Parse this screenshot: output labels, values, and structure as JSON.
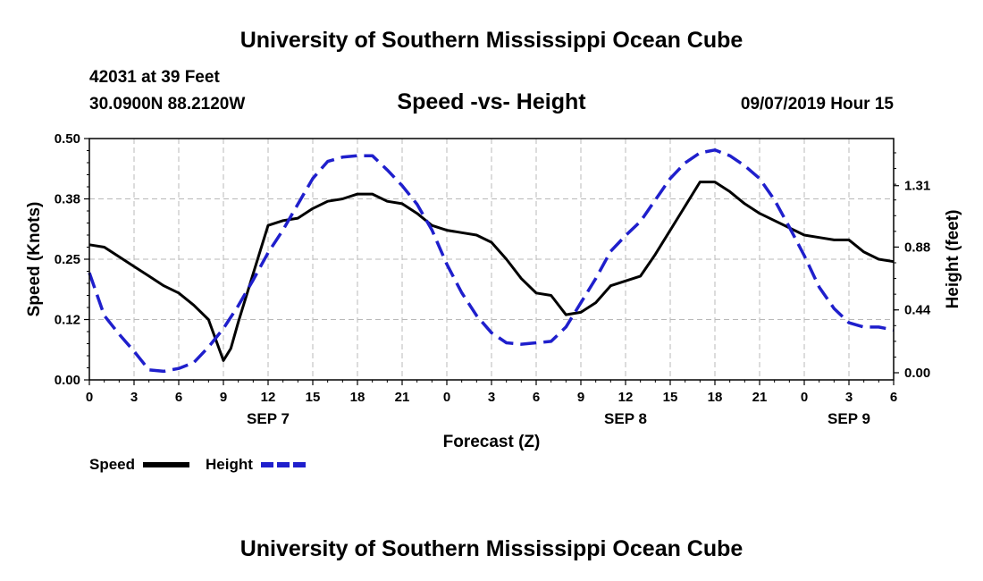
{
  "header": {
    "title": "University of Southern Mississippi Ocean Cube",
    "station": "42031 at 39 Feet",
    "coordinates": "30.0900N 88.2120W",
    "subtitle": "Speed -vs- Height",
    "date": "09/07/2019 Hour 15"
  },
  "footer": {
    "title": "University of Southern Mississippi Ocean Cube"
  },
  "colors": {
    "speed": "#000000",
    "height": "#1f1fcc",
    "grid": "#b8b8b8"
  },
  "chart_data": {
    "type": "line",
    "title": "Speed -vs- Height",
    "xlabel": "Forecast (Z)",
    "ylabel_left": "Speed (Knots)",
    "ylabel_right": "Height (feet)",
    "xlim": [
      0,
      54
    ],
    "ylim_left": [
      0,
      0.5
    ],
    "ylim_right": [
      -0.05,
      1.64
    ],
    "x_ticks": [
      0,
      3,
      6,
      9,
      12,
      15,
      18,
      21,
      24,
      27,
      30,
      33,
      36,
      39,
      42,
      45,
      48,
      51,
      54
    ],
    "x_tick_labels": [
      "0",
      "3",
      "6",
      "9",
      "12",
      "15",
      "18",
      "21",
      "0",
      "3",
      "6",
      "9",
      "12",
      "15",
      "18",
      "21",
      "0",
      "3",
      "6"
    ],
    "day_labels": [
      {
        "x": 12,
        "label": "SEP 7"
      },
      {
        "x": 36,
        "label": "SEP 8"
      },
      {
        "x": 51,
        "label": "SEP 9"
      }
    ],
    "y_left_ticks": [
      0,
      0.125,
      0.25,
      0.375,
      0.5
    ],
    "y_left_tick_labels": [
      "0.00",
      "0.12",
      "0.25",
      "0.38",
      "0.50"
    ],
    "y_right_ticks": [
      0,
      0.44,
      0.88,
      1.31
    ],
    "y_right_tick_labels": [
      "0.00",
      "0.44",
      "0.88",
      "1.31"
    ],
    "grid": true,
    "series": [
      {
        "name": "Speed",
        "axis": "left",
        "style": "solid",
        "x": [
          0,
          1,
          2,
          3,
          4,
          5,
          6,
          7,
          8,
          9,
          9.5,
          10,
          11,
          12,
          13,
          14,
          15,
          16,
          17,
          18,
          19,
          20,
          21,
          22,
          23,
          24,
          25,
          26,
          27,
          28,
          29,
          30,
          31,
          32,
          33,
          34,
          35,
          36,
          37,
          38,
          39,
          40,
          41,
          42,
          43,
          44,
          45,
          46,
          47,
          48,
          49,
          50,
          51,
          52,
          53,
          54
        ],
        "y": [
          0.28,
          0.275,
          0.255,
          0.235,
          0.215,
          0.195,
          0.18,
          0.155,
          0.125,
          0.04,
          0.065,
          0.12,
          0.22,
          0.32,
          0.33,
          0.335,
          0.355,
          0.37,
          0.375,
          0.385,
          0.385,
          0.37,
          0.365,
          0.345,
          0.32,
          0.31,
          0.305,
          0.3,
          0.285,
          0.25,
          0.21,
          0.18,
          0.175,
          0.135,
          0.14,
          0.16,
          0.195,
          0.205,
          0.215,
          0.26,
          0.31,
          0.36,
          0.41,
          0.41,
          0.39,
          0.365,
          0.345,
          0.33,
          0.315,
          0.3,
          0.295,
          0.29,
          0.29,
          0.265,
          0.25,
          0.245
        ]
      },
      {
        "name": "Height",
        "axis": "right",
        "style": "dashed",
        "x": [
          0,
          1,
          2,
          3,
          4,
          5,
          6,
          7,
          8,
          9,
          10,
          11,
          12,
          13,
          14,
          15,
          16,
          17,
          18,
          19,
          20,
          21,
          22,
          23,
          24,
          25,
          26,
          27,
          28,
          29,
          30,
          31,
          32,
          33,
          34,
          35,
          36,
          37,
          38,
          39,
          40,
          41,
          42,
          43,
          44,
          45,
          46,
          47,
          48,
          49,
          50,
          51,
          52,
          53,
          54
        ],
        "y": [
          0.7,
          0.4,
          0.27,
          0.15,
          0.02,
          0.01,
          0.03,
          0.07,
          0.18,
          0.31,
          0.47,
          0.65,
          0.84,
          1.0,
          1.18,
          1.36,
          1.48,
          1.51,
          1.52,
          1.52,
          1.42,
          1.31,
          1.18,
          1.0,
          0.76,
          0.56,
          0.4,
          0.28,
          0.21,
          0.2,
          0.21,
          0.22,
          0.32,
          0.49,
          0.66,
          0.85,
          0.96,
          1.06,
          1.21,
          1.36,
          1.47,
          1.54,
          1.56,
          1.52,
          1.45,
          1.36,
          1.21,
          1.02,
          0.82,
          0.6,
          0.45,
          0.35,
          0.32,
          0.32,
          0.3
        ]
      }
    ],
    "legend": {
      "placement": "bottom-left",
      "entries": [
        "Speed",
        "Height"
      ]
    }
  }
}
